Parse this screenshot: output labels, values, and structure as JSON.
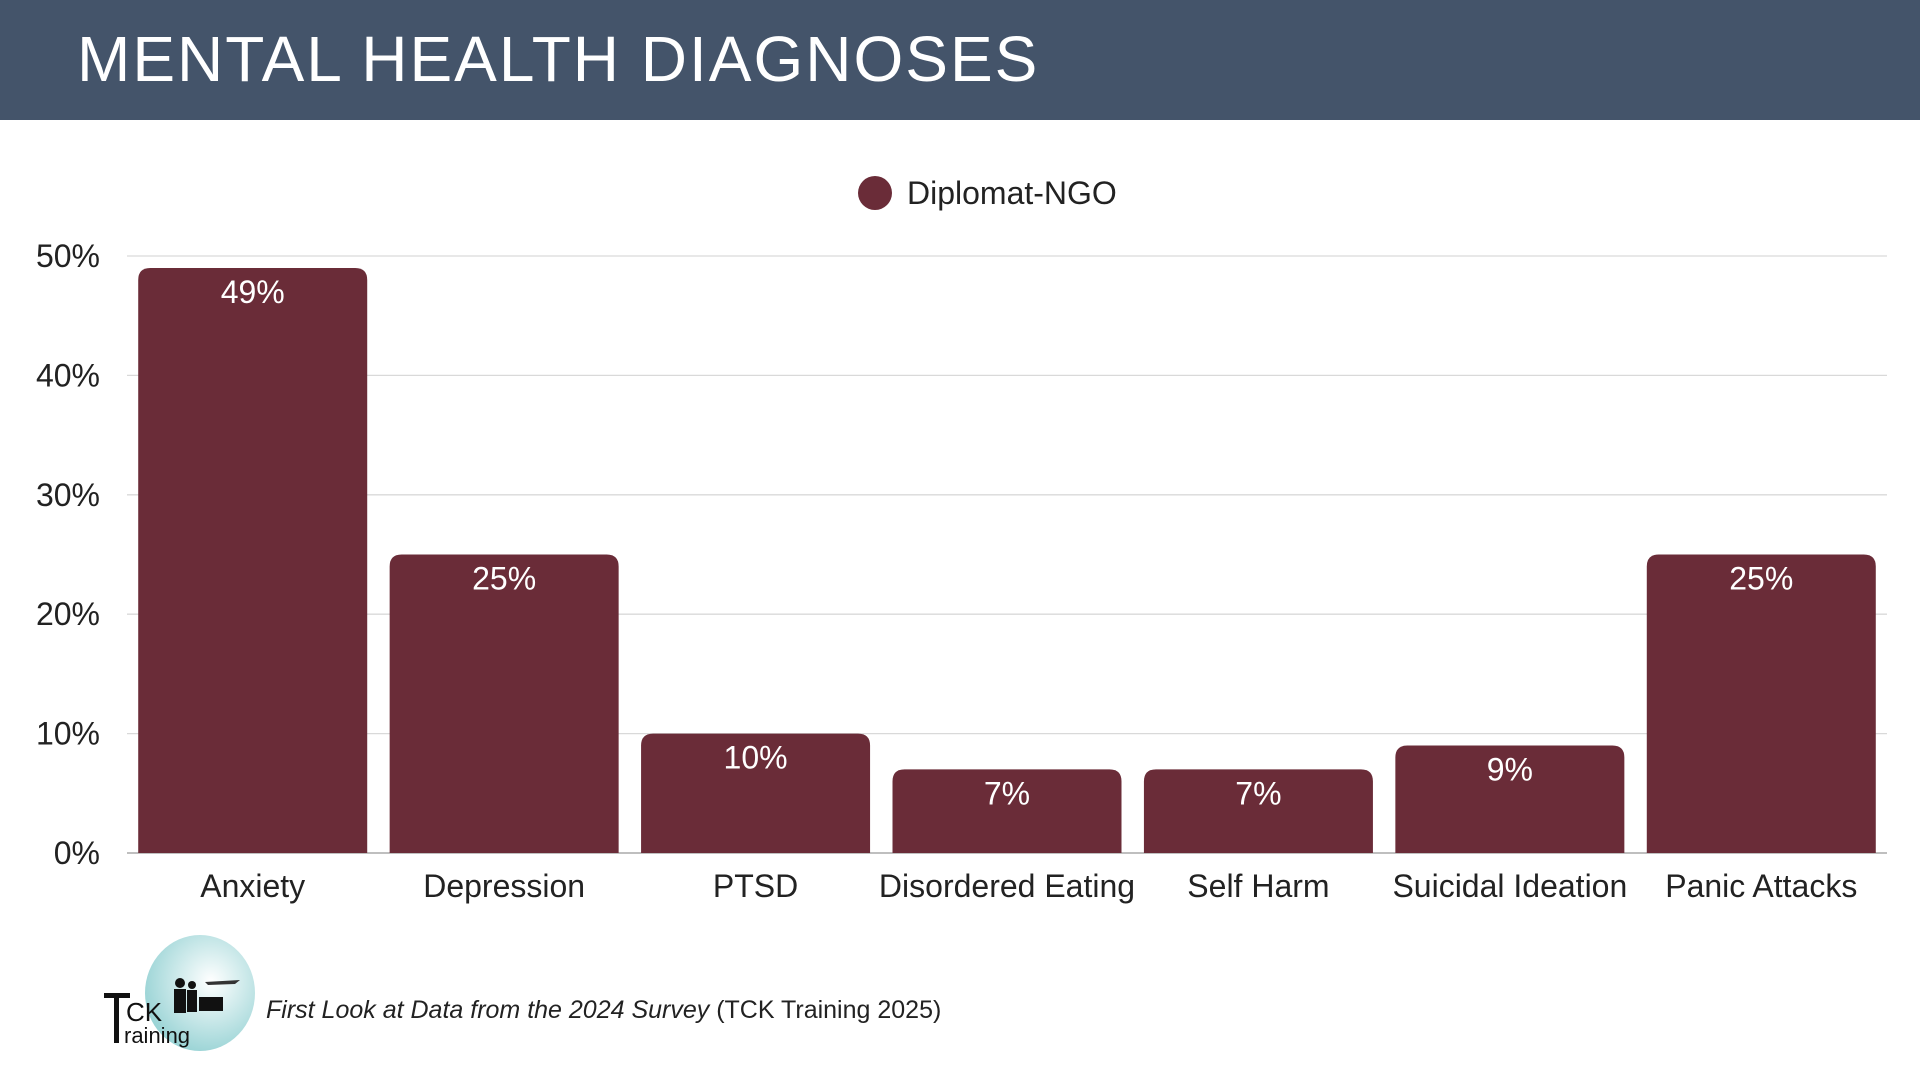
{
  "header": {
    "title": "MENTAL HEALTH DIAGNOSES"
  },
  "colors": {
    "header_bg": "#44546a",
    "bar": "#6a2c38",
    "grid": "#d9d9d9"
  },
  "chart_data": {
    "type": "bar",
    "title": "",
    "legend": {
      "entries": [
        "Diplomat-NGO"
      ],
      "placement": "top-center"
    },
    "categories": [
      "Anxiety",
      "Depression",
      "PTSD",
      "Disordered Eating",
      "Self Harm",
      "Suicidal Ideation",
      "Panic Attacks"
    ],
    "series": [
      {
        "name": "Diplomat-NGO",
        "values": [
          49,
          25,
          10,
          7,
          7,
          9,
          25
        ],
        "labels": [
          "49%",
          "25%",
          "10%",
          "7%",
          "7%",
          "9%",
          "25%"
        ]
      }
    ],
    "yticks": [
      "0%",
      "10%",
      "20%",
      "30%",
      "40%",
      "50%"
    ],
    "ylim": [
      0,
      50
    ],
    "grid": true,
    "xlabel": "",
    "ylabel": ""
  },
  "footer": {
    "logo_text": "TCK Training",
    "citation_italic": "First Look at Data from the 2024 Survey",
    "citation_rest": " (TCK Training 2025)"
  }
}
